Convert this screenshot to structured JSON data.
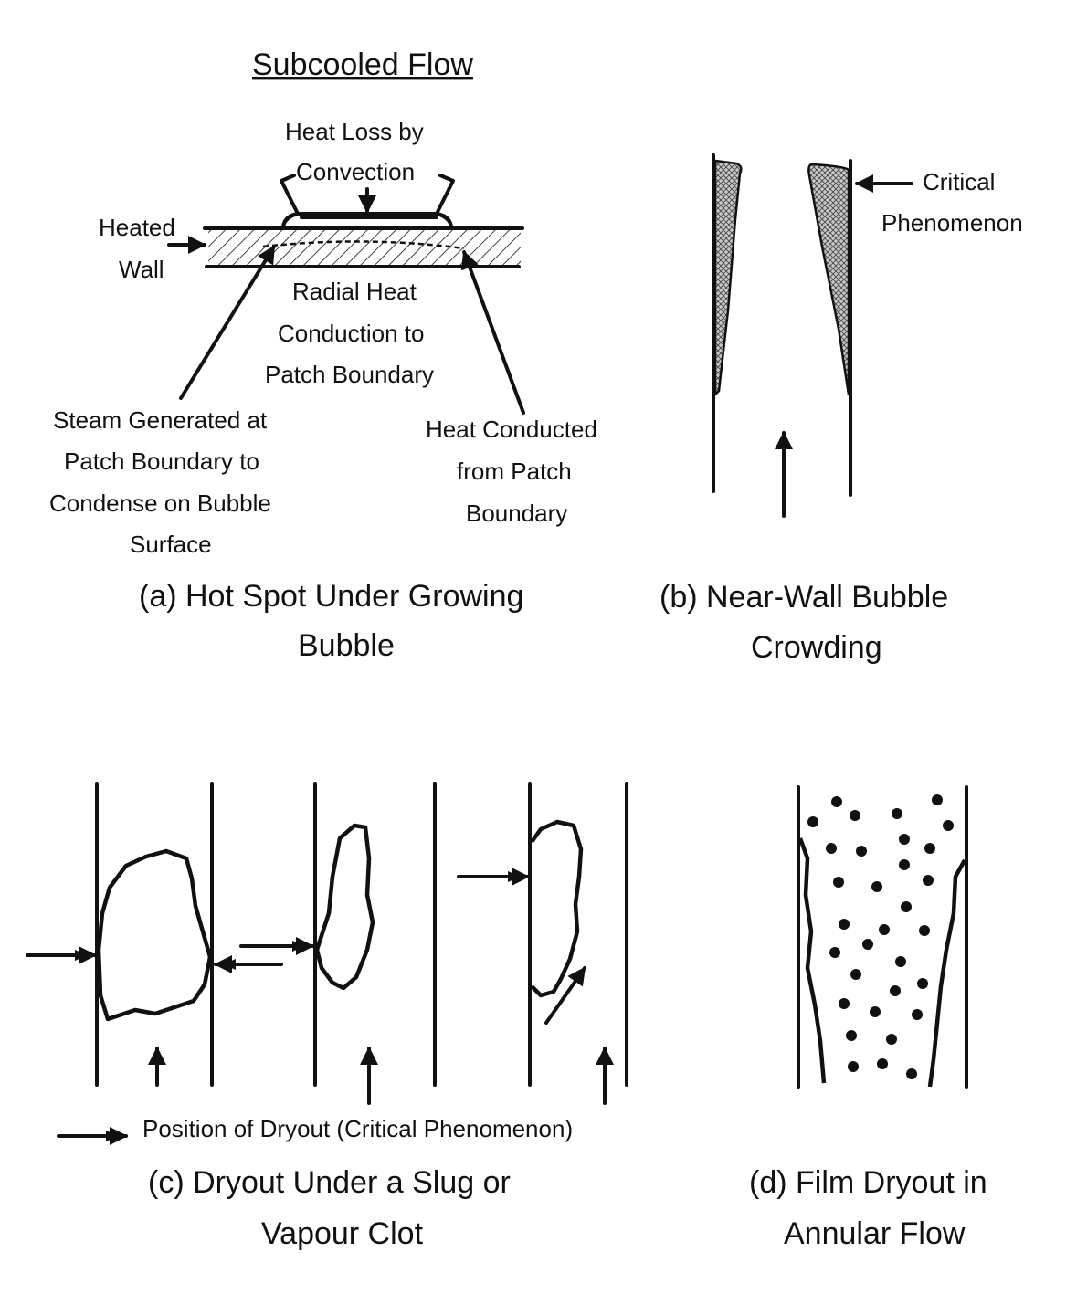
{
  "title": "Subcooled Flow",
  "panel_a": {
    "heat_loss_line1": "Heat Loss by",
    "heat_loss_line2": "Convection",
    "heated_wall_line1": "Heated",
    "heated_wall_line2": "Wall",
    "radial_line1": "Radial Heat",
    "radial_line2": "Conduction to",
    "radial_line3": "Patch Boundary",
    "steam_line1": "Steam Generated at",
    "steam_line2": "Patch Boundary to",
    "steam_line3": "Condense on Bubble",
    "steam_line4": "Surface",
    "conducted_line1": "Heat Conducted",
    "conducted_line2": "from Patch",
    "conducted_line3": "Boundary",
    "caption_line1": "(a) Hot Spot Under Growing",
    "caption_line2": "Bubble"
  },
  "panel_b": {
    "critical_line1": "Critical",
    "critical_line2": "Phenomenon",
    "caption_line1": "(b) Near-Wall  Bubble",
    "caption_line2": "Crowding"
  },
  "panel_c": {
    "legend_text": "Position of Dryout (Critical Phenomenon)",
    "caption_line1": "(c)  Dryout Under a Slug or",
    "caption_line2": "Vapour Clot"
  },
  "panel_d": {
    "caption_line1": "(d)  Film Dryout in",
    "caption_line2": "Annular Flow"
  },
  "colors": {
    "ink": "#111111",
    "background": "#ffffff"
  },
  "icons": [
    "arrow-icon",
    "double-arrow-icon"
  ]
}
